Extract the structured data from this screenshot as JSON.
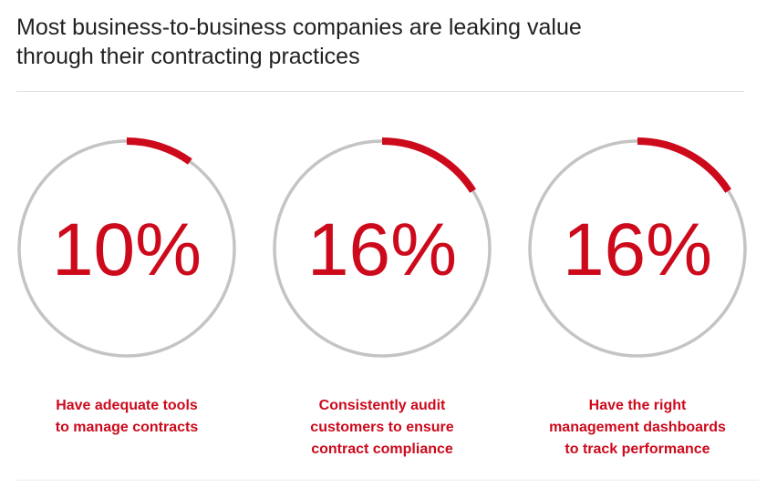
{
  "title_lines": [
    "Most business-to-business companies are leaking value",
    "through their contracting practices"
  ],
  "colors": {
    "accent": "#cc0a1c",
    "ring": "#c4c4c4",
    "title": "#222222"
  },
  "chart_data": {
    "type": "pie",
    "title": "Most business-to-business companies are leaking value through their contracting practices",
    "items": [
      {
        "value": 10,
        "label": "10%",
        "caption_lines": [
          "Have adequate tools",
          "to manage contracts"
        ]
      },
      {
        "value": 16,
        "label": "16%",
        "caption_lines": [
          "Consistently audit",
          "customers to ensure",
          "contract compliance"
        ]
      },
      {
        "value": 16,
        "label": "16%",
        "caption_lines": [
          "Have the right",
          "management dashboards",
          "to track performance"
        ]
      }
    ]
  }
}
